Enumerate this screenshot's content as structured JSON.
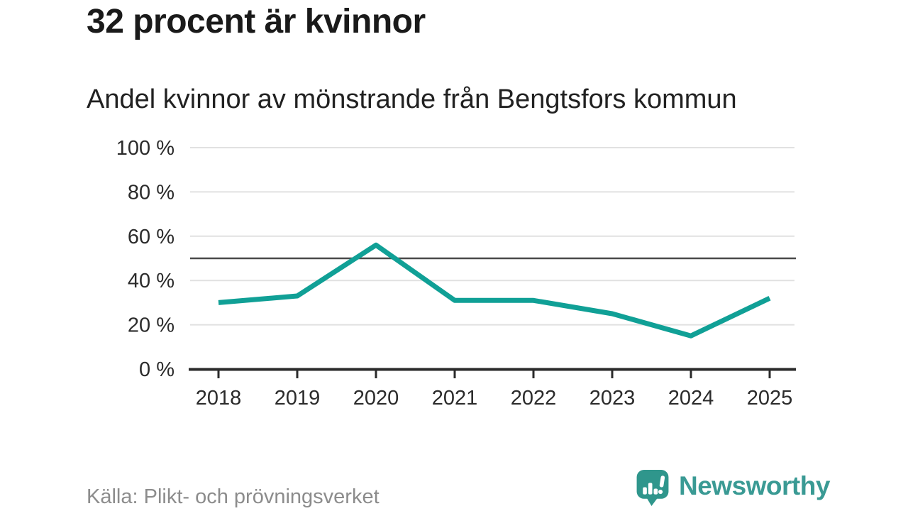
{
  "chart_data": {
    "type": "line",
    "title": "32 procent är kvinnor",
    "subtitle": "Andel kvinnor av mönstrande från Bengtsfors kommun",
    "categories": [
      "2018",
      "2019",
      "2020",
      "2021",
      "2022",
      "2023",
      "2024",
      "2025"
    ],
    "series": [
      {
        "name": "Andel kvinnor av mönstrande",
        "values": [
          30,
          33,
          56,
          31,
          31,
          25,
          15,
          32
        ],
        "color": "#10A096",
        "line_width": 7
      }
    ],
    "xlabel": "",
    "ylabel": "",
    "ylim": [
      0,
      100
    ],
    "yticks": [
      0,
      20,
      40,
      60,
      80,
      100
    ],
    "ytick_suffix": " %",
    "grid": true,
    "gridline_color": "#E1E1E1",
    "reference_line": {
      "value": 50,
      "color": "#4A4A4A"
    },
    "axis_color": "#2B2B2B",
    "tick_label_color": "#2B2B2B",
    "legend_position": "none"
  },
  "footer": {
    "source": "Källa: Plikt- och prövningsverket",
    "brand": {
      "name": "Newsworthy",
      "text_color": "#3A9A94",
      "icon_color": "#2F968C",
      "icon": "speech-bubble-bar-chart-icon"
    }
  }
}
